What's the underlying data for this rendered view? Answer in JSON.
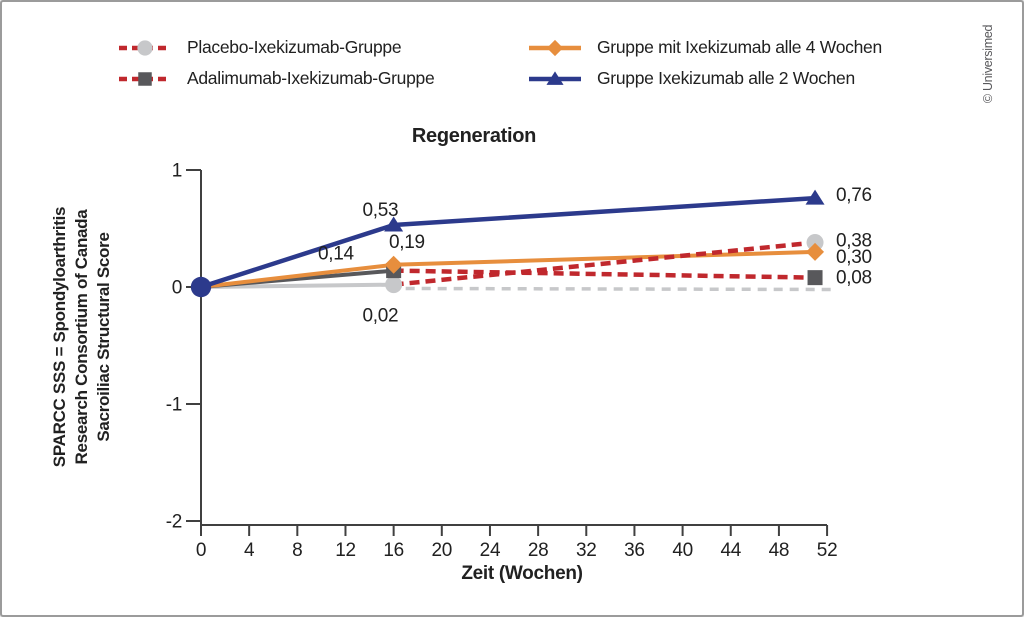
{
  "copyright": "© Universimed",
  "colors": {
    "red_dashed": "#c0282d",
    "blue": "#2c3a8c",
    "orange": "#e78e3d",
    "light_gray": "#c7c8ca",
    "dark_gray": "#58585b",
    "axis": "#404040"
  },
  "legend": {
    "columns": [
      {
        "items": [
          {
            "label": "Placebo-Ixekizumab-Gruppe",
            "line_style": "dashed",
            "line_color": "#c0282d",
            "marker": "circle",
            "marker_color": "#c7c8ca"
          },
          {
            "label": "Adalimumab-Ixekizumab-Gruppe",
            "line_style": "dashed",
            "line_color": "#c0282d",
            "marker": "square",
            "marker_color": "#58585b"
          }
        ]
      },
      {
        "items": [
          {
            "label": "Gruppe mit Ixekizumab alle 4 Wochen",
            "line_style": "solid",
            "line_color": "#e78e3d",
            "marker": "diamond",
            "marker_color": "#e78e3d"
          },
          {
            "label": "Gruppe Ixekizumab alle 2 Wochen",
            "line_style": "solid",
            "line_color": "#2c3a8c",
            "marker": "triangle",
            "marker_color": "#2c3a8c"
          }
        ]
      }
    ]
  },
  "chart_data": {
    "type": "line",
    "title": "Regeneration",
    "xlabel": "Zeit (Wochen)",
    "ylabel": "SPARCC SSS = Spondyloarthritis Research Consortium of Canada Sacroiliac Structural Score",
    "ylabel_lines": [
      "SPARCC SSS = Spondyloarthritis",
      "Research Consortium of Canada",
      "Sacroiliac Structural Score"
    ],
    "xticks": [
      0,
      4,
      8,
      12,
      16,
      20,
      24,
      28,
      32,
      36,
      40,
      44,
      48,
      52
    ],
    "ytick_labels": [
      "1",
      "0",
      "-1",
      "-2"
    ],
    "ytick_values": [
      1,
      0,
      -1,
      -2
    ],
    "xlim": [
      0,
      52
    ],
    "ylim": [
      -2,
      1
    ],
    "grid": false,
    "legend_position": "top",
    "x": [
      0,
      16,
      51
    ],
    "series": [
      {
        "name": "Placebo-Ixekizumab-Gruppe",
        "values": [
          0,
          0.02,
          0.38
        ],
        "marker": "circle",
        "marker_color": "#c7c8ca",
        "segments": [
          {
            "style": "solid",
            "color": "#c7c8ca",
            "width": 4,
            "points": [
              [
                0,
                0
              ],
              [
                16,
                0.02
              ]
            ]
          },
          {
            "style": "dashed",
            "color": "#c0282d",
            "width": 4.5,
            "points": [
              [
                16,
                0.02
              ],
              [
                51,
                0.38
              ]
            ]
          }
        ],
        "labels": [
          {
            "text": "0,02",
            "week": 14.9,
            "value": 0.02,
            "dx": 0,
            "dy": 37,
            "anchor": "middle"
          },
          {
            "text": "0,38",
            "week": 51,
            "value": 0.38,
            "dx": 21,
            "dy": 4,
            "anchor": "start"
          }
        ]
      },
      {
        "name": "Adalimumab-Ixekizumab-Gruppe",
        "values": [
          0,
          0.14,
          0.08
        ],
        "marker": "square",
        "marker_color": "#58585b",
        "segments": [
          {
            "style": "solid",
            "color": "#58585b",
            "width": 4,
            "points": [
              [
                0,
                0
              ],
              [
                16,
                0.14
              ]
            ]
          },
          {
            "style": "dashed",
            "color": "#c0282d",
            "width": 4.5,
            "points": [
              [
                16,
                0.14
              ],
              [
                51,
                0.08
              ]
            ]
          }
        ],
        "labels": [
          {
            "text": "0,14",
            "week": 11.2,
            "value": 0.14,
            "dx": 0,
            "dy": -11,
            "anchor": "middle"
          },
          {
            "text": "0,08",
            "week": 51,
            "value": 0.08,
            "dx": 21,
            "dy": 6,
            "anchor": "start"
          }
        ]
      },
      {
        "name": "Gruppe mit Ixekizumab alle 4 Wochen",
        "values": [
          0,
          0.19,
          0.3
        ],
        "marker": "diamond",
        "marker_color": "#e78e3d",
        "segments": [
          {
            "style": "solid",
            "color": "#e78e3d",
            "width": 4,
            "points": [
              [
                0,
                0
              ],
              [
                16,
                0.19
              ],
              [
                51,
                0.3
              ]
            ]
          }
        ],
        "labels": [
          {
            "text": "0,19",
            "week": 17.1,
            "value": 0.19,
            "dx": 0,
            "dy": -17,
            "anchor": "middle"
          },
          {
            "text": "0,30",
            "week": 51,
            "value": 0.3,
            "dx": 21,
            "dy": 11,
            "anchor": "start"
          }
        ]
      },
      {
        "name": "Gruppe Ixekizumab alle 2 Wochen",
        "values": [
          0,
          0.53,
          0.76
        ],
        "marker": "triangle",
        "marker_color": "#2c3a8c",
        "segments": [
          {
            "style": "solid",
            "color": "#2c3a8c",
            "width": 4.5,
            "points": [
              [
                0,
                0
              ],
              [
                16,
                0.53
              ],
              [
                51,
                0.76
              ]
            ]
          }
        ],
        "labels": [
          {
            "text": "0,53",
            "week": 14.9,
            "value": 0.53,
            "dx": 0,
            "dy": -9,
            "anchor": "middle"
          },
          {
            "text": "0,76",
            "week": 51,
            "value": 0.76,
            "dx": 21,
            "dy": 3,
            "anchor": "start"
          }
        ]
      }
    ],
    "reference_line": {
      "value": 0,
      "from_week": 17,
      "to_week": 52.5,
      "style": "dashed",
      "color": "#c7c8ca",
      "width": 3.5
    },
    "start_marker": {
      "week": 0,
      "value": 0,
      "shape": "circle",
      "color": "#2c3a8c"
    }
  }
}
